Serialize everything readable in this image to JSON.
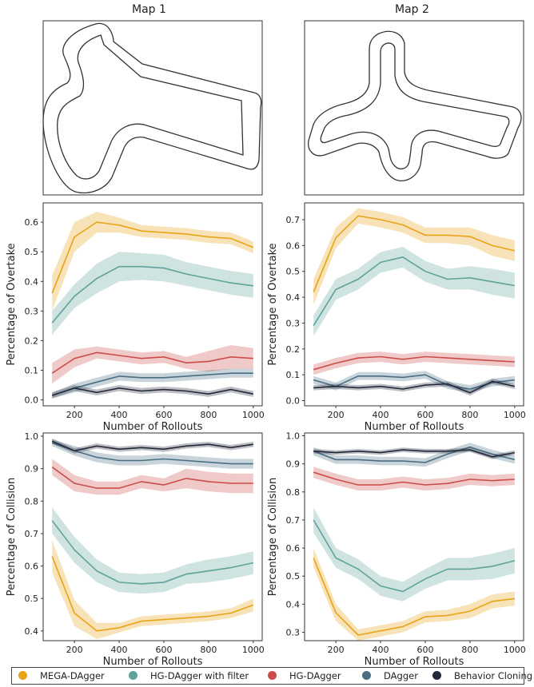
{
  "map_titles": [
    "Map 1",
    "Map 2"
  ],
  "colors": {
    "MEGA-DAgger": "#e8a317",
    "HG-DAgger with filter": "#5fa39a",
    "HG-DAgger": "#cc4c4c",
    "DAgger": "#4a6f84",
    "Behavior Cloning": "#23283a"
  },
  "legend": [
    "MEGA-DAgger",
    "HG-DAgger with filter",
    "HG-DAgger",
    "DAgger",
    "Behavior Cloning"
  ],
  "chart_data": [
    {
      "type": "line",
      "map": "Map 1",
      "xlabel": "Number of Rollouts",
      "ylabel": "Percentage of Overtake",
      "xlim": [
        60,
        1040
      ],
      "ylim": [
        -0.02,
        0.665
      ],
      "xticks": [
        200,
        400,
        600,
        800,
        1000
      ],
      "yticks": [
        0.0,
        0.1,
        0.2,
        0.3,
        0.4,
        0.5,
        0.6
      ],
      "ytick_labels": [
        "0.0",
        "0.1",
        "0.2",
        "0.3",
        "0.4",
        "0.5",
        "0.6"
      ],
      "x": [
        100,
        200,
        300,
        400,
        500,
        600,
        700,
        800,
        900,
        1000
      ],
      "series": [
        {
          "name": "MEGA-DAgger",
          "values": [
            0.36,
            0.55,
            0.6,
            0.59,
            0.57,
            0.565,
            0.56,
            0.55,
            0.545,
            0.515
          ],
          "band": [
            0.06,
            0.05,
            0.035,
            0.025,
            0.02,
            0.02,
            0.02,
            0.02,
            0.02,
            0.02
          ]
        },
        {
          "name": "HG-DAgger with filter",
          "values": [
            0.26,
            0.35,
            0.41,
            0.45,
            0.45,
            0.445,
            0.425,
            0.41,
            0.395,
            0.385
          ],
          "band": [
            0.04,
            0.04,
            0.05,
            0.05,
            0.045,
            0.045,
            0.04,
            0.04,
            0.04,
            0.04
          ]
        },
        {
          "name": "HG-DAgger",
          "values": [
            0.09,
            0.14,
            0.16,
            0.15,
            0.14,
            0.145,
            0.125,
            0.13,
            0.145,
            0.14
          ],
          "band": [
            0.035,
            0.03,
            0.02,
            0.02,
            0.02,
            0.02,
            0.02,
            0.035,
            0.04,
            0.035
          ]
        },
        {
          "name": "DAgger",
          "values": [
            0.015,
            0.04,
            0.06,
            0.08,
            0.075,
            0.075,
            0.08,
            0.085,
            0.09,
            0.09
          ],
          "band": [
            0.01,
            0.015,
            0.015,
            0.015,
            0.015,
            0.015,
            0.015,
            0.015,
            0.015,
            0.015
          ]
        },
        {
          "name": "Behavior Cloning",
          "values": [
            0.015,
            0.04,
            0.025,
            0.04,
            0.03,
            0.035,
            0.03,
            0.02,
            0.035,
            0.02
          ],
          "band": [
            0.01,
            0.01,
            0.01,
            0.01,
            0.01,
            0.01,
            0.01,
            0.01,
            0.01,
            0.01
          ]
        }
      ]
    },
    {
      "type": "line",
      "map": "Map 2",
      "xlabel": "Number of Rollouts",
      "ylabel": "Percentage of Overtake",
      "xlim": [
        60,
        1040
      ],
      "ylim": [
        -0.02,
        0.765
      ],
      "xticks": [
        200,
        400,
        600,
        800,
        1000
      ],
      "yticks": [
        0.0,
        0.1,
        0.2,
        0.3,
        0.4,
        0.5,
        0.6,
        0.7
      ],
      "ytick_labels": [
        "0.0",
        "0.1",
        "0.2",
        "0.3",
        "0.4",
        "0.5",
        "0.6",
        "0.7"
      ],
      "x": [
        100,
        200,
        300,
        400,
        500,
        600,
        700,
        800,
        900,
        1000
      ],
      "series": [
        {
          "name": "MEGA-DAgger",
          "values": [
            0.42,
            0.63,
            0.715,
            0.7,
            0.68,
            0.64,
            0.64,
            0.635,
            0.6,
            0.58
          ],
          "band": [
            0.05,
            0.04,
            0.03,
            0.03,
            0.03,
            0.03,
            0.03,
            0.035,
            0.04,
            0.04
          ]
        },
        {
          "name": "HG-DAgger with filter",
          "values": [
            0.29,
            0.43,
            0.47,
            0.535,
            0.555,
            0.5,
            0.47,
            0.475,
            0.46,
            0.445
          ],
          "band": [
            0.04,
            0.04,
            0.04,
            0.04,
            0.04,
            0.04,
            0.04,
            0.045,
            0.05,
            0.05
          ]
        },
        {
          "name": "HG-DAgger",
          "values": [
            0.12,
            0.145,
            0.165,
            0.17,
            0.16,
            0.17,
            0.165,
            0.16,
            0.155,
            0.15
          ],
          "band": [
            0.02,
            0.02,
            0.02,
            0.02,
            0.02,
            0.02,
            0.02,
            0.02,
            0.02,
            0.02
          ]
        },
        {
          "name": "DAgger",
          "values": [
            0.08,
            0.055,
            0.095,
            0.095,
            0.09,
            0.1,
            0.06,
            0.045,
            0.07,
            0.08
          ],
          "band": [
            0.015,
            0.015,
            0.015,
            0.015,
            0.015,
            0.015,
            0.015,
            0.015,
            0.015,
            0.015
          ]
        },
        {
          "name": "Behavior Cloning",
          "values": [
            0.05,
            0.055,
            0.05,
            0.055,
            0.045,
            0.06,
            0.065,
            0.03,
            0.075,
            0.055
          ],
          "band": [
            0.01,
            0.01,
            0.01,
            0.01,
            0.01,
            0.01,
            0.01,
            0.01,
            0.01,
            0.01
          ]
        }
      ]
    },
    {
      "type": "line",
      "map": "Map 1",
      "xlabel": "Number of Rollouts",
      "ylabel": "Percentage of Collision",
      "xlim": [
        60,
        1040
      ],
      "ylim": [
        0.37,
        1.01
      ],
      "xticks": [
        200,
        400,
        600,
        800,
        1000
      ],
      "yticks": [
        0.4,
        0.5,
        0.6,
        0.7,
        0.8,
        0.9,
        1.0
      ],
      "ytick_labels": [
        "0.4",
        "0.5",
        "0.6",
        "0.7",
        "0.8",
        "0.9",
        "1.0"
      ],
      "x": [
        100,
        200,
        300,
        400,
        500,
        600,
        700,
        800,
        900,
        1000
      ],
      "series": [
        {
          "name": "MEGA-DAgger",
          "values": [
            0.63,
            0.455,
            0.4,
            0.41,
            0.43,
            0.435,
            0.44,
            0.445,
            0.455,
            0.48
          ],
          "band": [
            0.05,
            0.04,
            0.025,
            0.015,
            0.015,
            0.015,
            0.015,
            0.015,
            0.015,
            0.02
          ]
        },
        {
          "name": "HG-DAgger with filter",
          "values": [
            0.74,
            0.65,
            0.585,
            0.55,
            0.545,
            0.55,
            0.575,
            0.585,
            0.595,
            0.61
          ],
          "band": [
            0.04,
            0.04,
            0.035,
            0.03,
            0.03,
            0.03,
            0.03,
            0.035,
            0.035,
            0.035
          ]
        },
        {
          "name": "HG-DAgger",
          "values": [
            0.905,
            0.855,
            0.84,
            0.84,
            0.86,
            0.85,
            0.87,
            0.86,
            0.855,
            0.855
          ],
          "band": [
            0.025,
            0.025,
            0.02,
            0.02,
            0.02,
            0.02,
            0.03,
            0.03,
            0.03,
            0.03
          ]
        },
        {
          "name": "DAgger",
          "values": [
            0.98,
            0.955,
            0.935,
            0.925,
            0.925,
            0.93,
            0.925,
            0.92,
            0.915,
            0.915
          ],
          "band": [
            0.01,
            0.015,
            0.015,
            0.015,
            0.015,
            0.015,
            0.015,
            0.015,
            0.015,
            0.015
          ]
        },
        {
          "name": "Behavior Cloning",
          "values": [
            0.985,
            0.955,
            0.97,
            0.96,
            0.965,
            0.96,
            0.97,
            0.975,
            0.965,
            0.975
          ],
          "band": [
            0.008,
            0.008,
            0.008,
            0.008,
            0.008,
            0.008,
            0.008,
            0.008,
            0.008,
            0.008
          ]
        }
      ]
    },
    {
      "type": "line",
      "map": "Map 2",
      "xlabel": "Number of Rollouts",
      "ylabel": "Percentage of Collision",
      "xlim": [
        60,
        1040
      ],
      "ylim": [
        0.27,
        1.01
      ],
      "xticks": [
        200,
        400,
        600,
        800,
        1000
      ],
      "yticks": [
        0.3,
        0.4,
        0.5,
        0.6,
        0.7,
        0.8,
        0.9,
        1.0
      ],
      "ytick_labels": [
        "0.3",
        "0.4",
        "0.5",
        "0.6",
        "0.7",
        "0.8",
        "0.9",
        "1.0"
      ],
      "x": [
        100,
        200,
        300,
        400,
        500,
        600,
        700,
        800,
        900,
        1000
      ],
      "series": [
        {
          "name": "MEGA-DAgger",
          "values": [
            0.565,
            0.37,
            0.29,
            0.305,
            0.32,
            0.355,
            0.36,
            0.375,
            0.41,
            0.42
          ],
          "band": [
            0.035,
            0.03,
            0.02,
            0.02,
            0.02,
            0.02,
            0.02,
            0.025,
            0.025,
            0.025
          ]
        },
        {
          "name": "HG-DAgger with filter",
          "values": [
            0.7,
            0.565,
            0.525,
            0.465,
            0.445,
            0.49,
            0.525,
            0.525,
            0.535,
            0.555
          ],
          "band": [
            0.045,
            0.035,
            0.035,
            0.035,
            0.035,
            0.035,
            0.04,
            0.04,
            0.045,
            0.045
          ]
        },
        {
          "name": "HG-DAgger",
          "values": [
            0.87,
            0.845,
            0.825,
            0.825,
            0.835,
            0.825,
            0.83,
            0.845,
            0.84,
            0.845
          ],
          "band": [
            0.02,
            0.02,
            0.02,
            0.02,
            0.02,
            0.02,
            0.02,
            0.02,
            0.02,
            0.02
          ]
        },
        {
          "name": "DAgger",
          "values": [
            0.945,
            0.915,
            0.915,
            0.91,
            0.91,
            0.905,
            0.935,
            0.96,
            0.935,
            0.915
          ],
          "band": [
            0.015,
            0.015,
            0.015,
            0.015,
            0.015,
            0.015,
            0.015,
            0.015,
            0.015,
            0.015
          ]
        },
        {
          "name": "Behavior Cloning",
          "values": [
            0.945,
            0.94,
            0.945,
            0.94,
            0.95,
            0.945,
            0.945,
            0.95,
            0.925,
            0.94
          ],
          "band": [
            0.008,
            0.008,
            0.008,
            0.008,
            0.008,
            0.008,
            0.008,
            0.008,
            0.008,
            0.008
          ]
        }
      ]
    }
  ]
}
